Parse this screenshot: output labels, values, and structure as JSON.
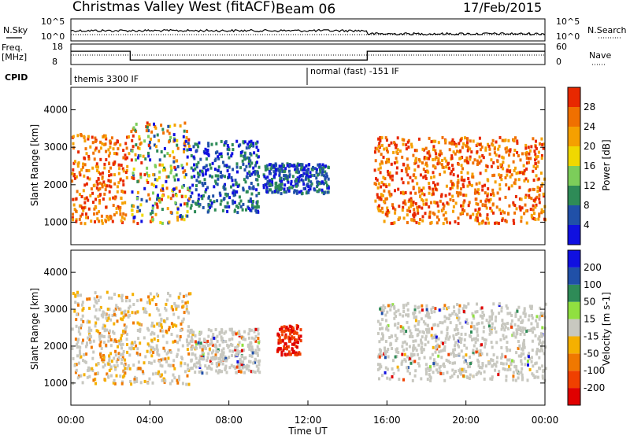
{
  "header": {
    "station": "Christmas Valley West (fitACF)",
    "beam": "Beam 06",
    "date": "17/Feb/2015"
  },
  "noise_panel": {
    "left_label": "N.Sky",
    "right_label": "N.Search",
    "left_ticks": [
      "10^5",
      "10^0"
    ],
    "right_ticks": [
      "10^5",
      "10^0"
    ]
  },
  "freq_panel": {
    "left_label_1": "Freq.",
    "left_label_2": "[MHz]",
    "right_label": "Nave",
    "left_ticks": [
      "18",
      "8"
    ],
    "right_ticks": [
      "60",
      "0"
    ],
    "freq_trace": [
      {
        "t": 0.0,
        "mhz": 14.5
      },
      {
        "t": 3.0,
        "mhz": 14.5
      },
      {
        "t": 3.0,
        "mhz": 10.2
      },
      {
        "t": 15.0,
        "mhz": 10.2
      },
      {
        "t": 15.0,
        "mhz": 14.5
      },
      {
        "t": 24.0,
        "mhz": 14.5
      }
    ]
  },
  "cpid_panel": {
    "label": "CPID",
    "segments": [
      "themis 3300 IF",
      "normal (fast) -151 IF"
    ]
  },
  "chart_data": [
    {
      "type": "heatmap",
      "name": "power",
      "ylabel": "Slant Range [km]",
      "yticks": [
        "1000",
        "2000",
        "3000",
        "4000"
      ],
      "ylim": [
        400,
        4600
      ],
      "colorbar_label": "Power [dB]",
      "colorbar_ticks": [
        "28",
        "24",
        "20",
        "16",
        "12",
        "8",
        "4"
      ],
      "colors": [
        "#1010e0",
        "#2050a8",
        "#2e8b57",
        "#7ccd5a",
        "#f0d800",
        "#f5a000",
        "#f07000",
        "#e82800"
      ],
      "echo_regions": [
        {
          "t0": 0.0,
          "t1": 2.9,
          "r0": 1000,
          "r1": 3400,
          "level": "high"
        },
        {
          "t0": 3.0,
          "t1": 6.0,
          "r0": 1000,
          "r1": 3700,
          "level": "mid"
        },
        {
          "t0": 6.0,
          "t1": 9.5,
          "r0": 1300,
          "r1": 3200,
          "level": "low"
        },
        {
          "t0": 9.7,
          "t1": 13.0,
          "r0": 1800,
          "r1": 2600,
          "level": "low"
        },
        {
          "t0": 15.3,
          "t1": 24.0,
          "r0": 1000,
          "r1": 3300,
          "level": "high"
        }
      ]
    },
    {
      "type": "heatmap",
      "name": "velocity",
      "ylabel": "Slant Range [km]",
      "yticks": [
        "1000",
        "2000",
        "3000",
        "4000"
      ],
      "ylim": [
        400,
        4600
      ],
      "colorbar_label": "Velocity [m s-1]",
      "colorbar_ticks": [
        "200",
        "100",
        "50",
        "15",
        "-15",
        "-50",
        "-100",
        "-200"
      ],
      "colors": [
        "#e00000",
        "#f04000",
        "#f07800",
        "#f5b000",
        "#c8c8c0",
        "#90e040",
        "#2e8b57",
        "#2050a8",
        "#1010e0"
      ],
      "echo_regions": [
        {
          "t0": 0.0,
          "t1": 6.0,
          "r0": 1000,
          "r1": 3500,
          "level": "grey-orange"
        },
        {
          "t0": 6.0,
          "t1": 9.5,
          "r0": 1300,
          "r1": 2500,
          "level": "grey"
        },
        {
          "t0": 10.4,
          "t1": 11.6,
          "r0": 1800,
          "r1": 2600,
          "level": "red"
        },
        {
          "t0": 15.5,
          "t1": 24.0,
          "r0": 1100,
          "r1": 3200,
          "level": "grey"
        }
      ]
    }
  ],
  "time_axis": {
    "label": "Time UT",
    "ticks": [
      "00:00",
      "04:00",
      "08:00",
      "12:00",
      "16:00",
      "20:00",
      "00:00"
    ]
  }
}
